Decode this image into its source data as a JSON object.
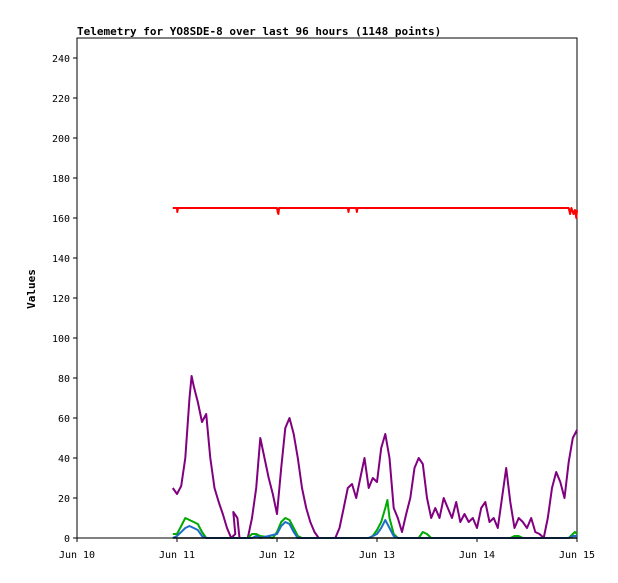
{
  "chart_data": {
    "type": "line",
    "title": "Telemetry for YO8SDE-8 over last 96 hours (1148 points)",
    "xlabel": "",
    "ylabel": "Values",
    "xlim": [
      "Jun 10",
      "Jun 15"
    ],
    "ylim": [
      0,
      250
    ],
    "x_ticks": [
      "Jun 10",
      "Jun 11",
      "Jun 12",
      "Jun 13",
      "Jun 14",
      "Jun 15"
    ],
    "y_ticks": [
      0,
      20,
      40,
      60,
      80,
      100,
      120,
      140,
      160,
      180,
      200,
      220,
      240
    ],
    "grid": false,
    "legend": "none",
    "series": [
      {
        "color": "#ff0000",
        "points": [
          [
            "Jun 10 23:00",
            165
          ],
          [
            "Jun 11 00:00",
            165
          ],
          [
            "Jun 11 00:05",
            163
          ],
          [
            "Jun 11 00:15",
            165
          ],
          [
            "Jun 12 00:00",
            165
          ],
          [
            "Jun 12 00:10",
            163
          ],
          [
            "Jun 12 00:20",
            162
          ],
          [
            "Jun 12 00:30",
            165
          ],
          [
            "Jun 12 17:00",
            165
          ],
          [
            "Jun 12 17:10",
            163
          ],
          [
            "Jun 12 17:20",
            165
          ],
          [
            "Jun 12 19:00",
            165
          ],
          [
            "Jun 12 19:10",
            163
          ],
          [
            "Jun 12 19:20",
            165
          ],
          [
            "Jun 14 22:00",
            165
          ],
          [
            "Jun 14 22:20",
            162
          ],
          [
            "Jun 14 22:40",
            165
          ],
          [
            "Jun 14 23:10",
            162
          ],
          [
            "Jun 14 23:30",
            164
          ],
          [
            "Jun 14 23:50",
            160
          ],
          [
            "Jun 15 00:00",
            164
          ]
        ]
      },
      {
        "color": "#800080",
        "points": [
          [
            "Jun 10 23:00",
            25
          ],
          [
            "Jun 11 00:00",
            22
          ],
          [
            "Jun 11 01:00",
            26
          ],
          [
            "Jun 11 02:00",
            40
          ],
          [
            "Jun 11 03:00",
            70
          ],
          [
            "Jun 11 03:30",
            81
          ],
          [
            "Jun 11 04:00",
            76
          ],
          [
            "Jun 11 05:00",
            68
          ],
          [
            "Jun 11 06:00",
            58
          ],
          [
            "Jun 11 07:00",
            62
          ],
          [
            "Jun 11 08:00",
            40
          ],
          [
            "Jun 11 09:00",
            25
          ],
          [
            "Jun 11 10:00",
            18
          ],
          [
            "Jun 11 11:00",
            12
          ],
          [
            "Jun 11 12:00",
            5
          ],
          [
            "Jun 11 13:00",
            0
          ],
          [
            "Jun 11 14:00",
            2
          ],
          [
            "Jun 11 13:30",
            13
          ],
          [
            "Jun 11 14:30",
            10
          ],
          [
            "Jun 11 15:00",
            0
          ],
          [
            "Jun 11 17:00",
            0
          ],
          [
            "Jun 11 18:00",
            10
          ],
          [
            "Jun 11 19:00",
            25
          ],
          [
            "Jun 11 20:00",
            50
          ],
          [
            "Jun 11 21:00",
            40
          ],
          [
            "Jun 11 22:00",
            30
          ],
          [
            "Jun 11 23:00",
            22
          ],
          [
            "Jun 12 00:00",
            12
          ],
          [
            "Jun 12 01:00",
            35
          ],
          [
            "Jun 12 02:00",
            55
          ],
          [
            "Jun 12 03:00",
            60
          ],
          [
            "Jun 12 04:00",
            52
          ],
          [
            "Jun 12 05:00",
            40
          ],
          [
            "Jun 12 06:00",
            25
          ],
          [
            "Jun 12 07:00",
            15
          ],
          [
            "Jun 12 08:00",
            8
          ],
          [
            "Jun 12 09:00",
            3
          ],
          [
            "Jun 12 10:00",
            0
          ],
          [
            "Jun 12 14:00",
            0
          ],
          [
            "Jun 12 15:00",
            5
          ],
          [
            "Jun 12 16:00",
            15
          ],
          [
            "Jun 12 17:00",
            25
          ],
          [
            "Jun 12 18:00",
            27
          ],
          [
            "Jun 12 19:00",
            20
          ],
          [
            "Jun 12 20:00",
            30
          ],
          [
            "Jun 12 21:00",
            40
          ],
          [
            "Jun 12 22:00",
            25
          ],
          [
            "Jun 12 23:00",
            30
          ],
          [
            "Jun 13 00:00",
            28
          ],
          [
            "Jun 13 01:00",
            45
          ],
          [
            "Jun 13 02:00",
            52
          ],
          [
            "Jun 13 03:00",
            40
          ],
          [
            "Jun 13 04:00",
            15
          ],
          [
            "Jun 13 05:00",
            10
          ],
          [
            "Jun 13 06:00",
            3
          ],
          [
            "Jun 13 07:00",
            12
          ],
          [
            "Jun 13 08:00",
            20
          ],
          [
            "Jun 13 09:00",
            35
          ],
          [
            "Jun 13 10:00",
            40
          ],
          [
            "Jun 13 11:00",
            37
          ],
          [
            "Jun 13 12:00",
            20
          ],
          [
            "Jun 13 13:00",
            10
          ],
          [
            "Jun 13 14:00",
            15
          ],
          [
            "Jun 13 15:00",
            10
          ],
          [
            "Jun 13 16:00",
            20
          ],
          [
            "Jun 13 17:00",
            15
          ],
          [
            "Jun 13 18:00",
            10
          ],
          [
            "Jun 13 19:00",
            18
          ],
          [
            "Jun 13 20:00",
            8
          ],
          [
            "Jun 13 21:00",
            12
          ],
          [
            "Jun 13 22:00",
            8
          ],
          [
            "Jun 13 23:00",
            10
          ],
          [
            "Jun 14 00:00",
            5
          ],
          [
            "Jun 14 01:00",
            15
          ],
          [
            "Jun 14 02:00",
            18
          ],
          [
            "Jun 14 03:00",
            8
          ],
          [
            "Jun 14 04:00",
            10
          ],
          [
            "Jun 14 05:00",
            5
          ],
          [
            "Jun 14 06:00",
            20
          ],
          [
            "Jun 14 07:00",
            35
          ],
          [
            "Jun 14 08:00",
            18
          ],
          [
            "Jun 14 09:00",
            5
          ],
          [
            "Jun 14 10:00",
            10
          ],
          [
            "Jun 14 11:00",
            8
          ],
          [
            "Jun 14 12:00",
            5
          ],
          [
            "Jun 14 13:00",
            10
          ],
          [
            "Jun 14 14:00",
            3
          ],
          [
            "Jun 14 15:00",
            2
          ],
          [
            "Jun 14 16:00",
            0
          ],
          [
            "Jun 14 17:00",
            10
          ],
          [
            "Jun 14 18:00",
            25
          ],
          [
            "Jun 14 19:00",
            33
          ],
          [
            "Jun 14 20:00",
            28
          ],
          [
            "Jun 14 21:00",
            20
          ],
          [
            "Jun 14 22:00",
            38
          ],
          [
            "Jun 14 23:00",
            50
          ],
          [
            "Jun 15 00:00",
            54
          ]
        ]
      },
      {
        "color": "#00aa00",
        "points": [
          [
            "Jun 10 23:00",
            2
          ],
          [
            "Jun 11 00:00",
            2
          ],
          [
            "Jun 11 01:00",
            6
          ],
          [
            "Jun 11 02:00",
            10
          ],
          [
            "Jun 11 03:00",
            9
          ],
          [
            "Jun 11 04:00",
            8
          ],
          [
            "Jun 11 05:00",
            7
          ],
          [
            "Jun 11 06:00",
            3
          ],
          [
            "Jun 11 07:00",
            0
          ],
          [
            "Jun 11 17:00",
            0
          ],
          [
            "Jun 11 18:00",
            2
          ],
          [
            "Jun 11 19:00",
            2
          ],
          [
            "Jun 11 20:00",
            1
          ],
          [
            "Jun 11 23:00",
            0
          ],
          [
            "Jun 12 00:00",
            3
          ],
          [
            "Jun 12 01:00",
            8
          ],
          [
            "Jun 12 02:00",
            10
          ],
          [
            "Jun 12 03:00",
            9
          ],
          [
            "Jun 12 04:00",
            5
          ],
          [
            "Jun 12 05:00",
            1
          ],
          [
            "Jun 12 06:00",
            0
          ],
          [
            "Jun 12 22:00",
            0
          ],
          [
            "Jun 12 23:00",
            1
          ],
          [
            "Jun 13 00:00",
            4
          ],
          [
            "Jun 13 01:00",
            8
          ],
          [
            "Jun 13 02:00",
            15
          ],
          [
            "Jun 13 02:30",
            19
          ],
          [
            "Jun 13 03:00",
            10
          ],
          [
            "Jun 13 04:00",
            2
          ],
          [
            "Jun 13 05:00",
            0
          ],
          [
            "Jun 13 10:00",
            0
          ],
          [
            "Jun 13 11:00",
            3
          ],
          [
            "Jun 13 12:00",
            2
          ],
          [
            "Jun 13 13:00",
            0
          ],
          [
            "Jun 14 08:00",
            0
          ],
          [
            "Jun 14 09:00",
            1
          ],
          [
            "Jun 14 10:00",
            1
          ],
          [
            "Jun 14 11:00",
            0
          ],
          [
            "Jun 14 22:00",
            0
          ],
          [
            "Jun 14 23:00",
            2
          ],
          [
            "Jun 14 23:30",
            3
          ],
          [
            "Jun 15 00:00",
            2
          ]
        ]
      },
      {
        "color": "#1e6ec8",
        "points": [
          [
            "Jun 10 23:00",
            0
          ],
          [
            "Jun 11 00:00",
            1
          ],
          [
            "Jun 11 01:00",
            3
          ],
          [
            "Jun 11 02:00",
            5
          ],
          [
            "Jun 11 03:00",
            6
          ],
          [
            "Jun 11 04:00",
            5
          ],
          [
            "Jun 11 05:00",
            4
          ],
          [
            "Jun 11 06:00",
            1
          ],
          [
            "Jun 11 07:00",
            0
          ],
          [
            "Jun 11 18:00",
            0
          ],
          [
            "Jun 11 19:00",
            1
          ],
          [
            "Jun 11 20:00",
            0
          ],
          [
            "Jun 12 00:00",
            2
          ],
          [
            "Jun 12 01:00",
            6
          ],
          [
            "Jun 12 02:00",
            8
          ],
          [
            "Jun 12 03:00",
            7
          ],
          [
            "Jun 12 04:00",
            3
          ],
          [
            "Jun 12 05:00",
            0
          ],
          [
            "Jun 12 22:00",
            0
          ],
          [
            "Jun 12 23:00",
            1
          ],
          [
            "Jun 13 00:00",
            2
          ],
          [
            "Jun 13 01:00",
            5
          ],
          [
            "Jun 13 02:00",
            9
          ],
          [
            "Jun 13 03:00",
            5
          ],
          [
            "Jun 13 04:00",
            1
          ],
          [
            "Jun 13 05:00",
            0
          ],
          [
            "Jun 14 22:00",
            0
          ],
          [
            "Jun 14 23:00",
            1
          ],
          [
            "Jun 15 00:00",
            1
          ]
        ]
      },
      {
        "color": "#000000",
        "points": [
          [
            "Jun 10 23:00",
            0
          ],
          [
            "Jun 15 00:00",
            0
          ]
        ]
      }
    ]
  }
}
